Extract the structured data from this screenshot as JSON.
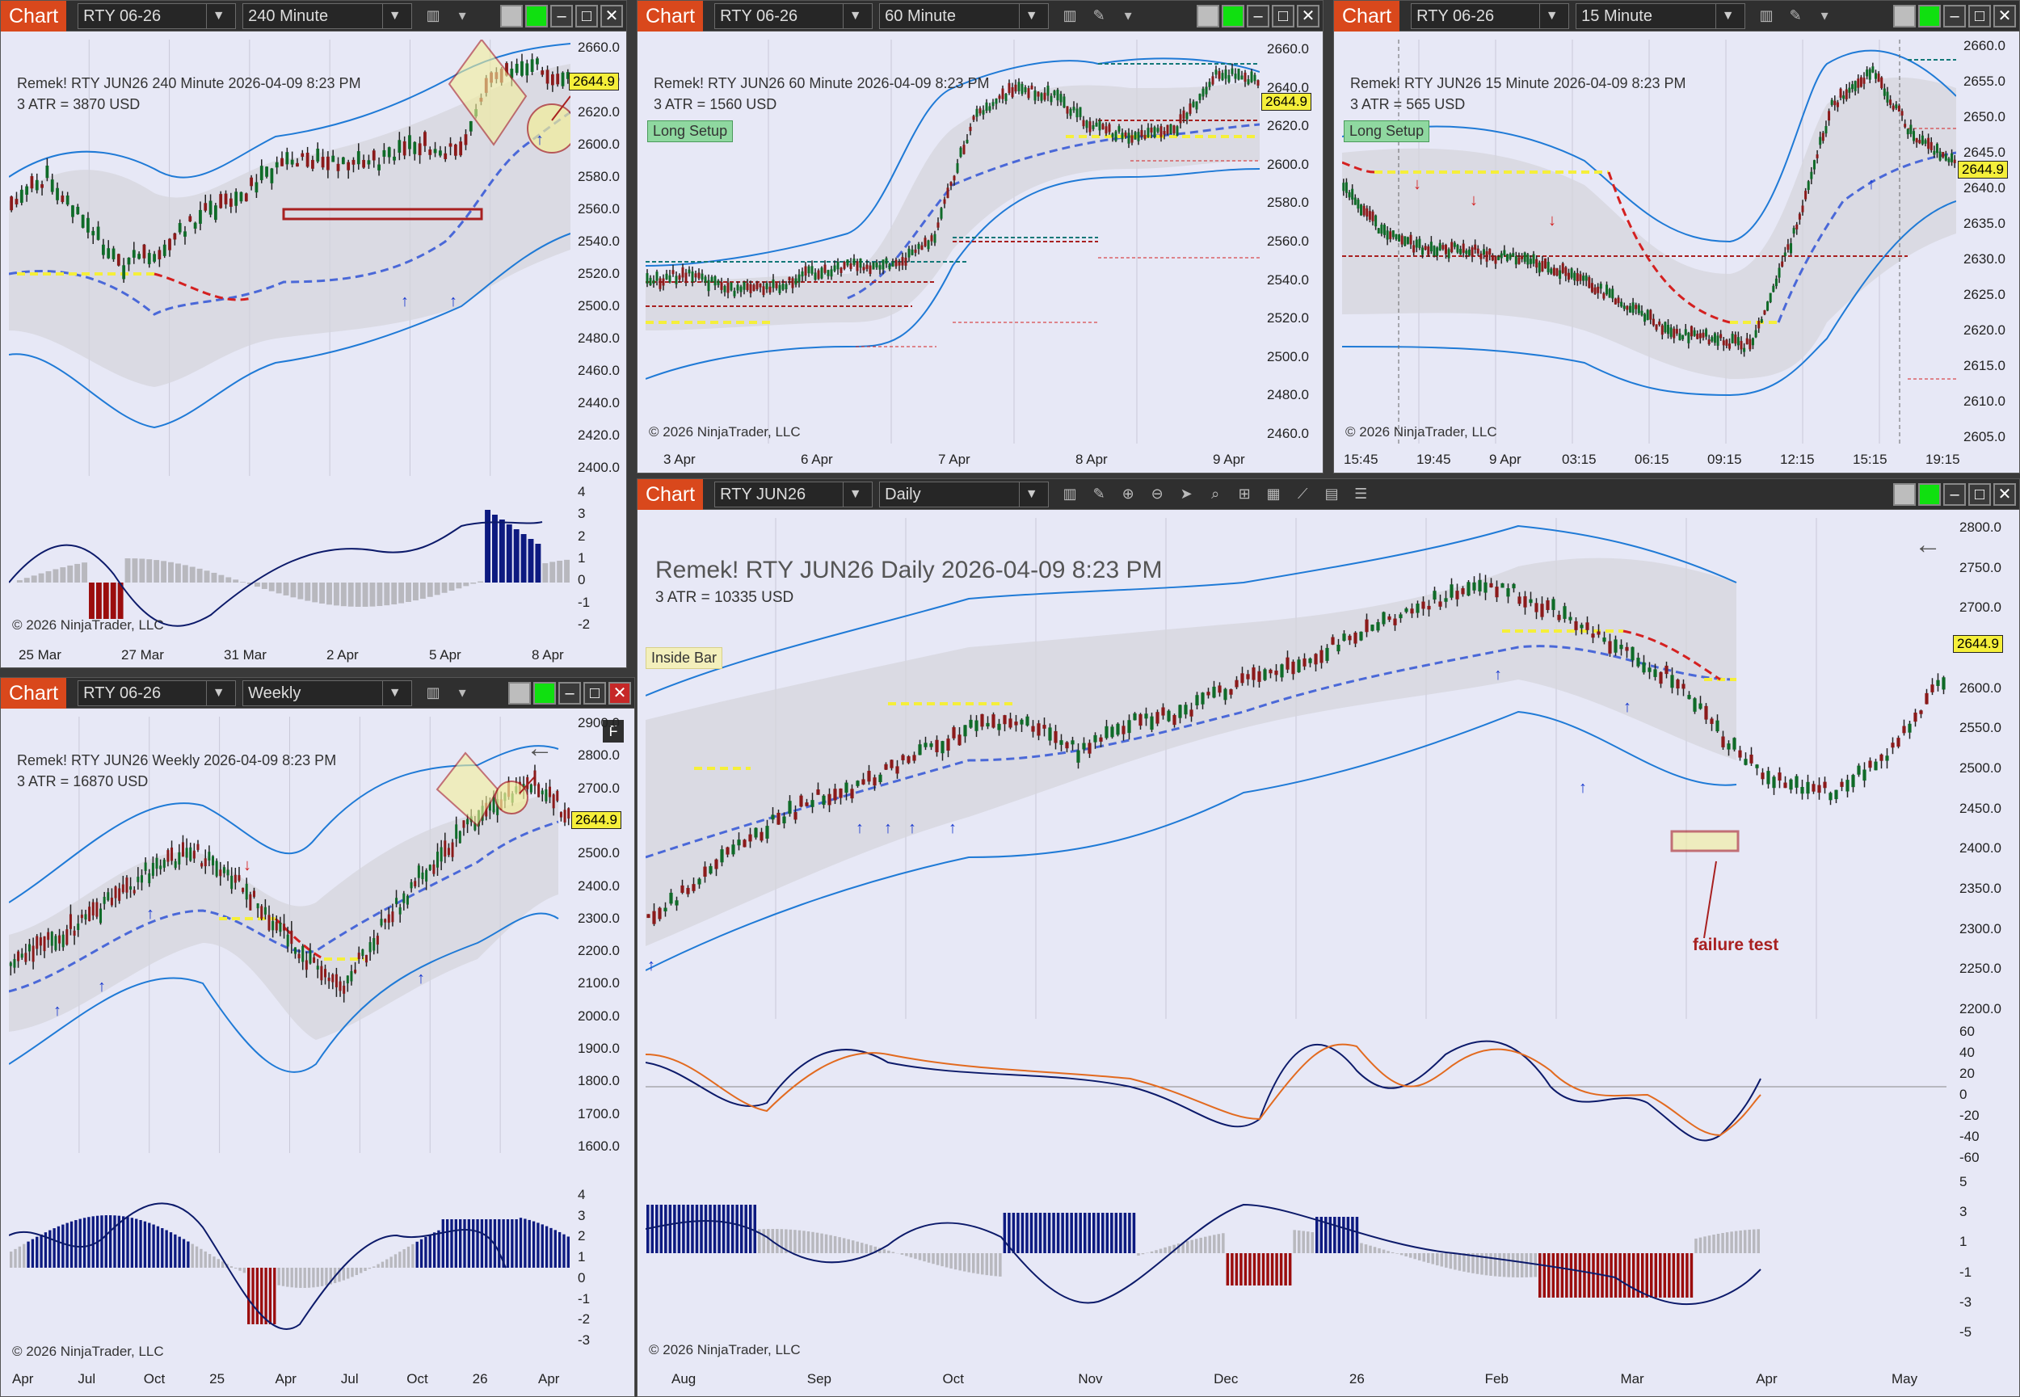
{
  "chart_tag": "Chart",
  "win1": {
    "instrument": "RTY 06-26",
    "period": "240 Minute",
    "title": "Remek!  RTY JUN26  240 Minute  2026-04-09 8:23 PM",
    "atr": "3 ATR = 3870 USD",
    "price_tag": "2644.9",
    "yticks": [
      "2660.0",
      "2640.0",
      "2620.0",
      "2600.0",
      "2580.0",
      "2560.0",
      "2540.0",
      "2520.0",
      "2500.0",
      "2480.0",
      "2460.0",
      "2440.0",
      "2420.0",
      "2400.0"
    ],
    "osc_ticks": [
      "4",
      "3",
      "2",
      "1",
      "0",
      "-1",
      "-2"
    ],
    "xticks": [
      "25 Mar",
      "27 Mar",
      "31 Mar",
      "2 Apr",
      "5 Apr",
      "8 Apr"
    ],
    "copyright": "© 2026 NinjaTrader, LLC"
  },
  "win2": {
    "instrument": "RTY 06-26",
    "period": "60 Minute",
    "title": "Remek!  RTY JUN26  60 Minute  2026-04-09 8:23 PM",
    "atr": "3 ATR = 1560 USD",
    "setup": "Long Setup",
    "price_tag": "2644.9",
    "yticks": [
      "2660.0",
      "2640.0",
      "2620.0",
      "2600.0",
      "2580.0",
      "2560.0",
      "2540.0",
      "2520.0",
      "2500.0",
      "2480.0",
      "2460.0"
    ],
    "xticks": [
      "3 Apr",
      "6 Apr",
      "7 Apr",
      "8 Apr",
      "9 Apr"
    ],
    "copyright": "© 2026 NinjaTrader, LLC"
  },
  "win3": {
    "instrument": "RTY 06-26",
    "period": "15 Minute",
    "title": "Remek!  RTY JUN26  15 Minute  2026-04-09 8:23 PM",
    "atr": "3 ATR = 565 USD",
    "setup": "Long Setup",
    "price_tag": "2644.9",
    "yticks": [
      "2660.0",
      "2655.0",
      "2650.0",
      "2645.0",
      "2640.0",
      "2635.0",
      "2630.0",
      "2625.0",
      "2620.0",
      "2615.0",
      "2610.0",
      "2605.0"
    ],
    "xticks": [
      "15:45",
      "19:45",
      "9 Apr",
      "03:15",
      "06:15",
      "09:15",
      "12:15",
      "15:15",
      "19:15"
    ],
    "copyright": "© 2026 NinjaTrader, LLC"
  },
  "win4": {
    "instrument": "RTY 06-26",
    "period": "Weekly",
    "title": "Remek!  RTY JUN26  Weekly  2026-04-09 8:23 PM",
    "atr": "3 ATR = 16870 USD",
    "price_tag": "2644.9",
    "f_label": "F",
    "yticks": [
      "2900.0",
      "2800.0",
      "2700.0",
      "2600.0",
      "2500.0",
      "2400.0",
      "2300.0",
      "2200.0",
      "2100.0",
      "2000.0",
      "1900.0",
      "1800.0",
      "1700.0",
      "1600.0"
    ],
    "osc_ticks": [
      "4",
      "3",
      "2",
      "1",
      "0",
      "-1",
      "-2",
      "-3"
    ],
    "xticks": [
      "Apr",
      "Jul",
      "Oct",
      "25",
      "Apr",
      "Jul",
      "Oct",
      "26",
      "Apr"
    ],
    "copyright": "© 2026 NinjaTrader, LLC"
  },
  "win5": {
    "instrument": "RTY JUN26",
    "period": "Daily",
    "title": "Remek!  RTY JUN26  Daily  2026-04-09 8:23 PM",
    "atr": "3 ATR = 10335 USD",
    "inside_bar": "Inside Bar",
    "price_tag": "2644.9",
    "annotation": "failure test",
    "yticks": [
      "2800.0",
      "2750.0",
      "2700.0",
      "2650.0",
      "2600.0",
      "2550.0",
      "2500.0",
      "2450.0",
      "2400.0",
      "2350.0",
      "2300.0",
      "2250.0",
      "2200.0"
    ],
    "osc1_ticks": [
      "60",
      "40",
      "20",
      "0",
      "-20",
      "-40",
      "-60"
    ],
    "osc2_ticks": [
      "5",
      "3",
      "1",
      "-1",
      "-3",
      "-5"
    ],
    "xticks": [
      "Aug",
      "Sep",
      "Oct",
      "Nov",
      "Dec",
      "26",
      "Feb",
      "Mar",
      "Apr",
      "May"
    ],
    "copyright": "© 2026 NinjaTrader, LLC"
  },
  "colors": {
    "bg": "#e7e8f6",
    "up": "#0f6b28",
    "down": "#8b1a1a",
    "band": "#1f7ad6",
    "accent": "#d9481c"
  }
}
